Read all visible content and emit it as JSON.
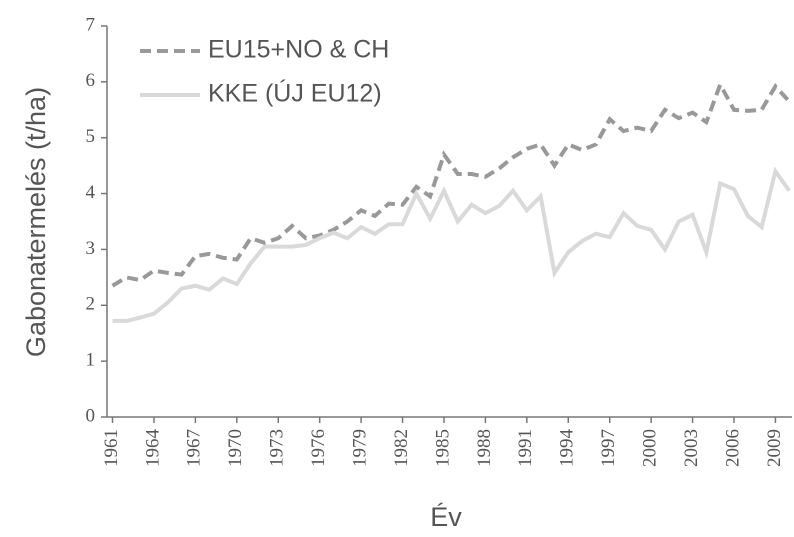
{
  "chart_data": {
    "type": "line",
    "y_label": "Gabonatermelés (t/ha)",
    "x_label": "Év",
    "x": [
      1961,
      1962,
      1963,
      1964,
      1965,
      1966,
      1967,
      1968,
      1969,
      1970,
      1971,
      1972,
      1973,
      1974,
      1975,
      1976,
      1977,
      1978,
      1979,
      1980,
      1981,
      1982,
      1983,
      1984,
      1985,
      1986,
      1987,
      1988,
      1989,
      1990,
      1991,
      1992,
      1993,
      1994,
      1995,
      1996,
      1997,
      1998,
      1999,
      2000,
      2001,
      2002,
      2003,
      2004,
      2005,
      2006,
      2007,
      2008,
      2009,
      2010
    ],
    "series": [
      {
        "name": "EU15+NO & CH",
        "color": "#999999",
        "line_style": "dashed",
        "values": [
          2.35,
          2.5,
          2.45,
          2.62,
          2.58,
          2.55,
          2.88,
          2.92,
          2.85,
          2.82,
          3.2,
          3.12,
          3.2,
          3.42,
          3.2,
          3.25,
          3.35,
          3.5,
          3.7,
          3.6,
          3.82,
          3.8,
          4.12,
          3.95,
          4.7,
          4.35,
          4.35,
          4.3,
          4.45,
          4.65,
          4.8,
          4.88,
          4.5,
          4.88,
          4.78,
          4.88,
          5.33,
          5.12,
          5.18,
          5.12,
          5.5,
          5.35,
          5.45,
          5.28,
          5.95,
          5.5,
          5.48,
          5.5,
          5.92,
          5.65
        ]
      },
      {
        "name": "KKE (ÚJ EU12)",
        "color": "#d9d9d9",
        "line_style": "solid",
        "values": [
          1.72,
          1.72,
          1.78,
          1.85,
          2.05,
          2.3,
          2.35,
          2.28,
          2.48,
          2.38,
          2.75,
          3.05,
          3.05,
          3.05,
          3.08,
          3.2,
          3.3,
          3.2,
          3.4,
          3.28,
          3.45,
          3.45,
          4.0,
          3.55,
          4.05,
          3.5,
          3.8,
          3.65,
          3.78,
          4.05,
          3.7,
          3.95,
          2.58,
          2.95,
          3.15,
          3.28,
          3.22,
          3.65,
          3.42,
          3.35,
          3.0,
          3.5,
          3.62,
          2.95,
          4.18,
          4.08,
          3.6,
          3.4,
          4.4,
          4.05
        ]
      }
    ],
    "xlim": [
      1960.6,
      2010.2
    ],
    "ylim": [
      0,
      7
    ],
    "xticks": [
      1961,
      1964,
      1967,
      1970,
      1973,
      1976,
      1979,
      1982,
      1985,
      1988,
      1991,
      1994,
      1997,
      2000,
      2003,
      2006,
      2009
    ],
    "yticks": [
      0,
      1,
      2,
      3,
      4,
      5,
      6,
      7
    ],
    "grid": false,
    "legend_position": "upper-left"
  }
}
